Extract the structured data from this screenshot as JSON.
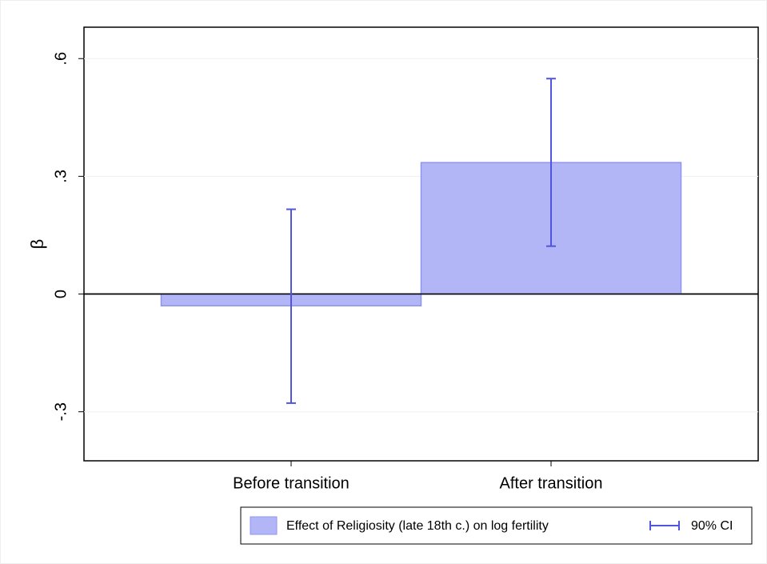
{
  "chart_data": {
    "type": "bar",
    "y_label": "β",
    "categories": [
      "Before transition",
      "After transition"
    ],
    "series": [
      {
        "name": "Effect of Religiosity (late 18th c.) on log fertility",
        "color": "#b3b6f6",
        "values": [
          -0.03,
          0.335
        ]
      },
      {
        "name": "90% CI",
        "color": "#4f55e0",
        "ci_low": [
          -0.278,
          0.122
        ],
        "ci_high": [
          0.216,
          0.549
        ]
      }
    ],
    "ylim": [
      -0.425,
      0.68
    ],
    "yticks": [
      {
        "value": 0.6,
        "label": ".6"
      },
      {
        "value": 0.3,
        "label": ".3"
      },
      0,
      {
        "value": -0.3,
        "label": "-.3"
      }
    ],
    "grid": true
  }
}
